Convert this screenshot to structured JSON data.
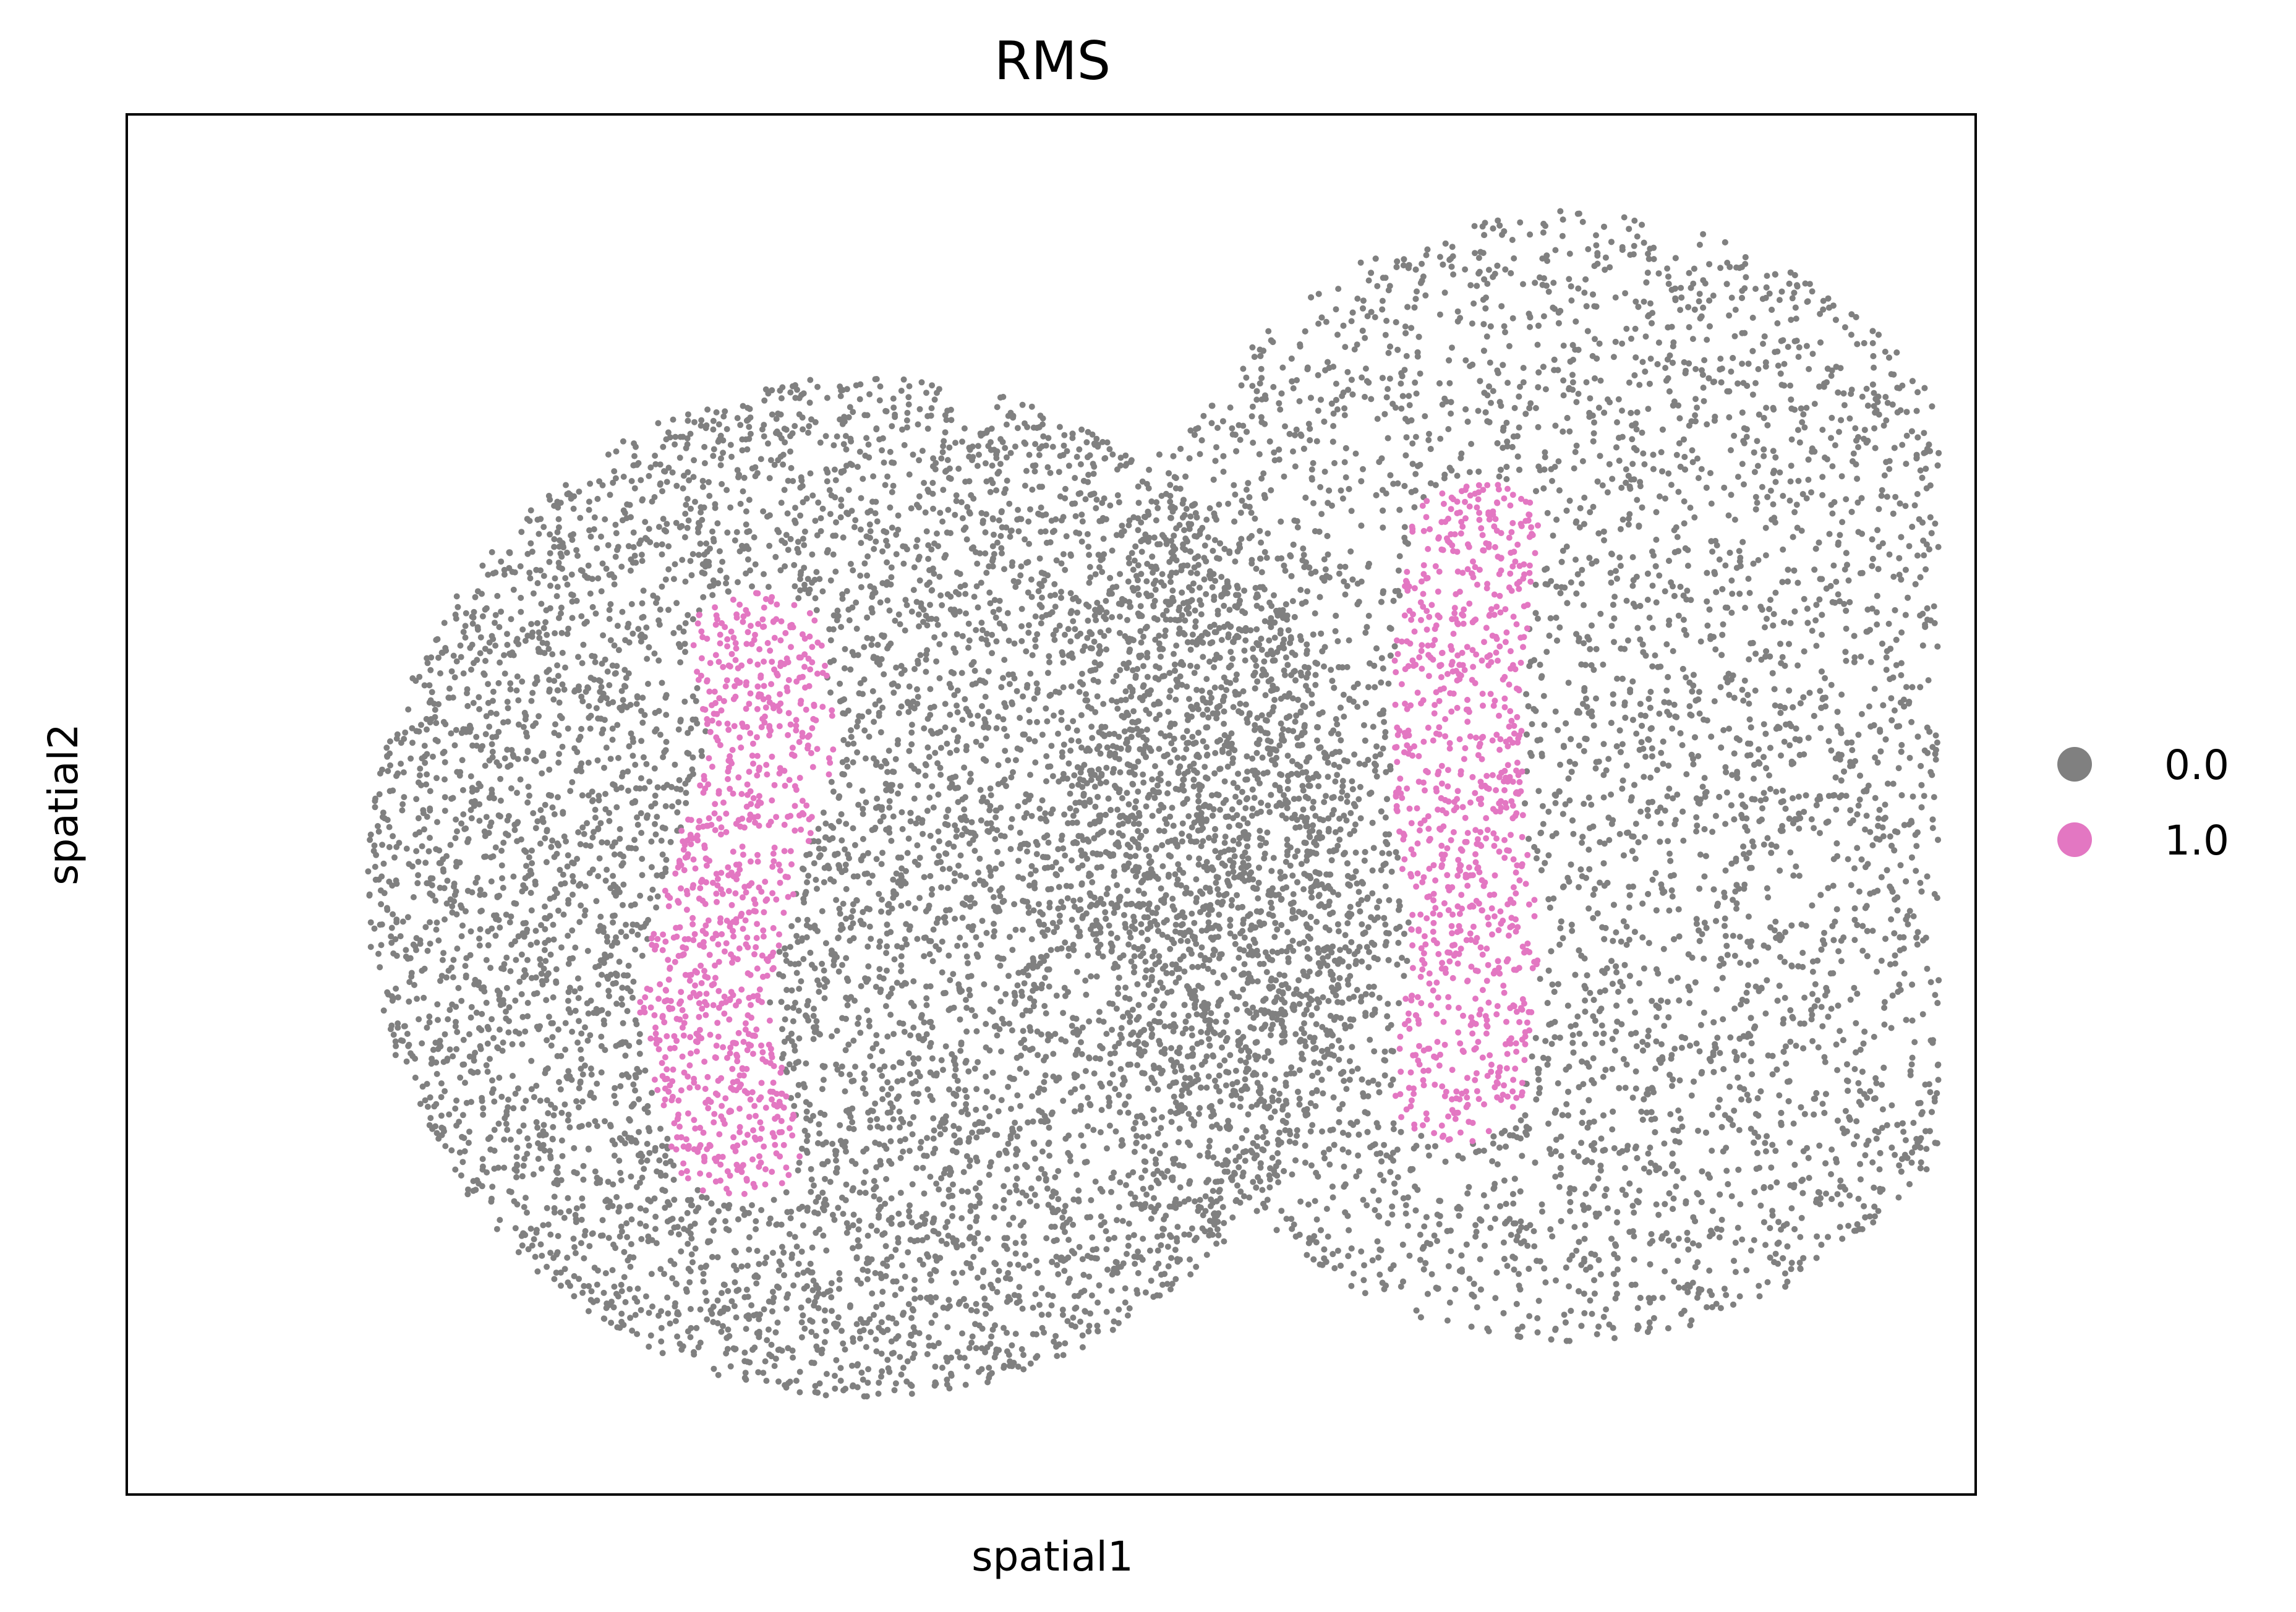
{
  "chart_data": {
    "type": "scatter",
    "title": "RMS",
    "xlabel": "spatial1",
    "ylabel": "spatial2",
    "grid": false,
    "legend_placement": "right",
    "categories": [
      "0.0",
      "1.0"
    ],
    "series": [
      {
        "name": "0.0",
        "color": "#808080",
        "regions": [
          {
            "shape": "ellipse",
            "cx": 0.4,
            "cy": 0.56,
            "rx": 0.27,
            "ry": 0.37
          },
          {
            "shape": "ellipse",
            "cx": 0.78,
            "cy": 0.48,
            "rx": 0.27,
            "ry": 0.41
          }
        ],
        "approx_point_count": 15000
      },
      {
        "name": "1.0",
        "color": "#e377c2",
        "regions": [
          {
            "shape": "polyline_band",
            "path": [
              [
                0.33,
                0.75
              ],
              [
                0.31,
                0.64
              ],
              [
                0.33,
                0.54
              ],
              [
                0.35,
                0.46
              ],
              [
                0.34,
                0.38
              ]
            ],
            "width": 0.035
          },
          {
            "shape": "polyline_band",
            "path": [
              [
                0.72,
                0.71
              ],
              [
                0.73,
                0.6
              ],
              [
                0.72,
                0.5
              ],
              [
                0.72,
                0.4
              ],
              [
                0.73,
                0.3
              ]
            ],
            "width": 0.035
          }
        ],
        "approx_point_count": 1700
      }
    ]
  }
}
